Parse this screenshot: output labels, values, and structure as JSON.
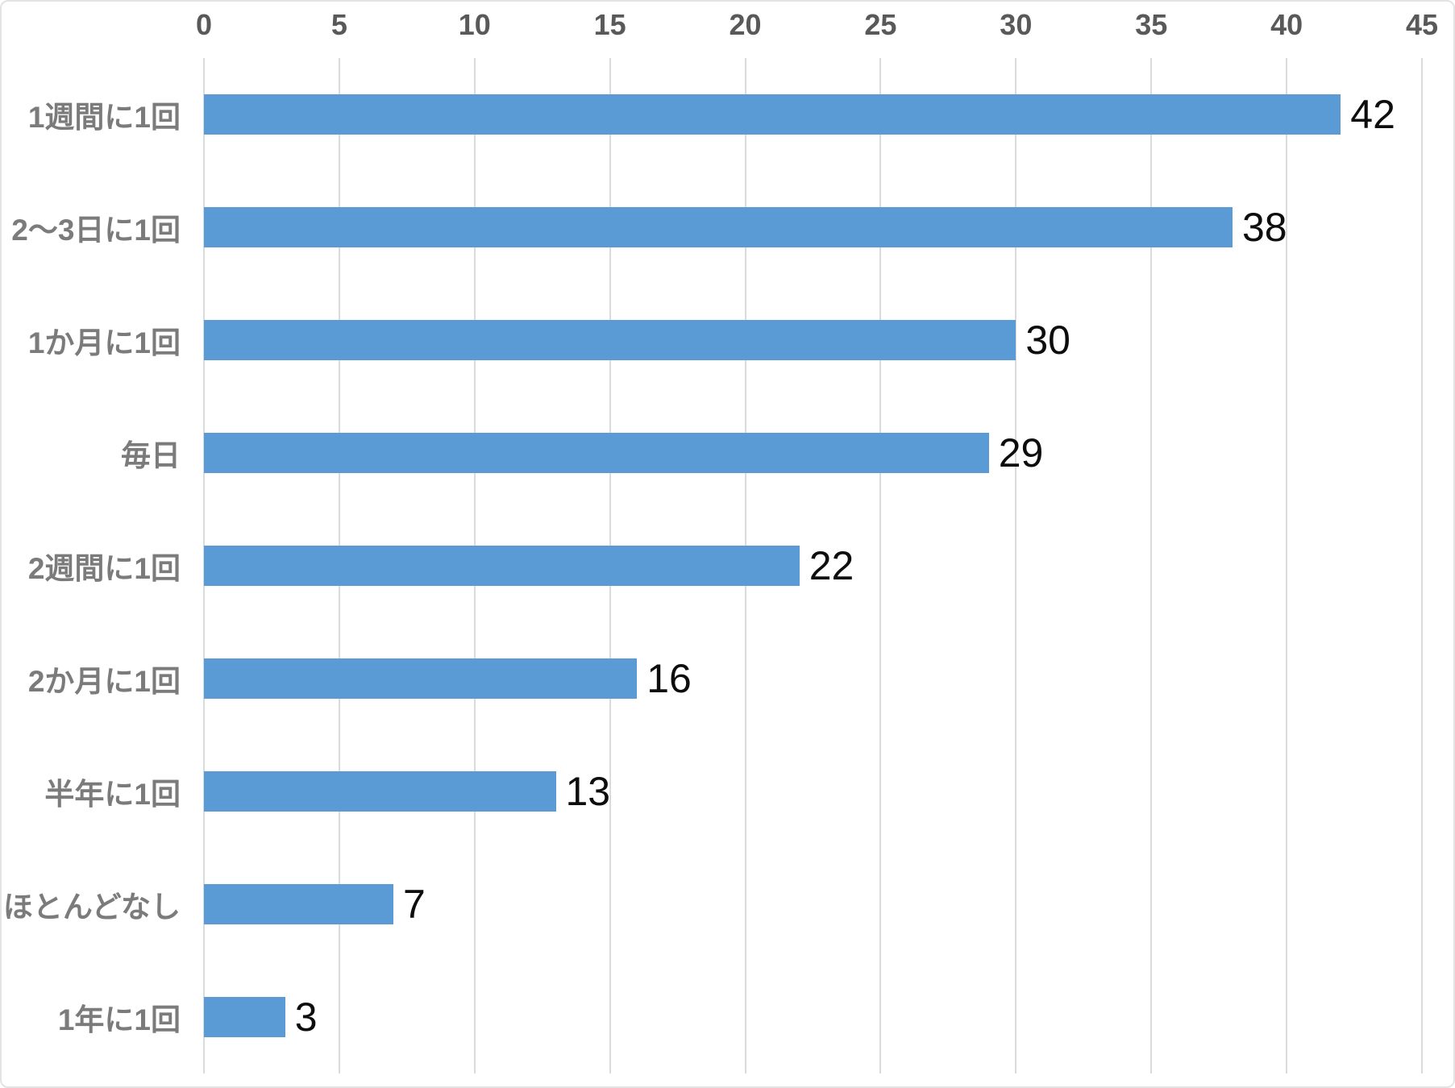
{
  "chart_data": {
    "type": "bar",
    "orientation": "horizontal",
    "title": "",
    "xlabel": "",
    "ylabel": "",
    "categories": [
      "1週間に1回",
      "2～3日に1回",
      "1か月に1回",
      "毎日",
      "2週間に1回",
      "2か月に1回",
      "半年に1回",
      "ほとんどなし",
      "1年に1回"
    ],
    "values": [
      42,
      38,
      30,
      29,
      22,
      16,
      13,
      7,
      3
    ],
    "value_labels": [
      "42",
      "38",
      "30",
      "29",
      "22",
      "16",
      "13",
      "7",
      "3"
    ],
    "xlim": [
      0,
      45
    ],
    "x_ticks": [
      "0",
      "5",
      "10",
      "15",
      "20",
      "25",
      "30",
      "35",
      "40",
      "45"
    ],
    "x_tick_values": [
      0,
      5,
      10,
      15,
      20,
      25,
      30,
      35,
      40,
      45
    ],
    "axis_position": "top",
    "grid": "vertical",
    "legend": "none",
    "colors": {
      "bar": "#5b9bd5",
      "tick_label": "#595959",
      "category_label": "#7b7b7b",
      "value_label": "#0d0d0d",
      "gridline": "#dbdbdb",
      "background": "#ffffff",
      "border": "#e3e3e3"
    }
  }
}
